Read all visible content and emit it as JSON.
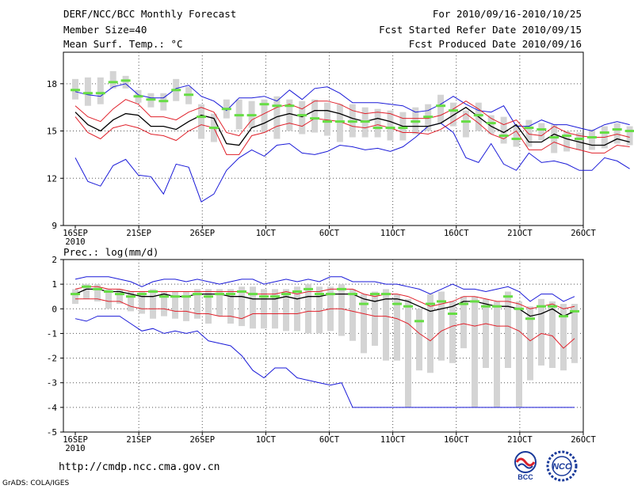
{
  "header": {
    "title": "DERF/NCC/BCC Monthly Forecast",
    "member": "Member Size=40",
    "variable": "Mean Surf. Temp.: °C",
    "period": "For 2010/09/16-2010/10/25",
    "started": "Fcst Started Refer Date 2010/09/15",
    "produced": "Fcst Produced Date 2010/09/16"
  },
  "footer": {
    "url": "http://cmdp.ncc.cma.gov.cn",
    "grads": "GrADS: COLA/IGES",
    "logo_bcc": "BCC",
    "logo_ncc": "NCC"
  },
  "colors": {
    "box": "#d4d4d4",
    "mean": "#000000",
    "spread": "#e0202a",
    "envelope": "#1a1ad8",
    "median": "#66dd44",
    "grid": "#555555"
  },
  "chart_data": [
    {
      "type": "box-plot",
      "title": "Mean Surf. Temp.: °C",
      "xlabel": "",
      "ylabel": "",
      "ylim": [
        9,
        20
      ],
      "yticks": [
        9,
        12,
        15,
        18
      ],
      "xtick_labels": [
        "16SEP",
        "21SEP",
        "26SEP",
        "1OCT",
        "6OCT",
        "11OCT",
        "16OCT",
        "21OCT",
        "26OCT"
      ],
      "xtick_days": [
        0,
        5,
        10,
        15,
        20,
        25,
        30,
        35,
        40
      ],
      "year_label": "2010",
      "series": [
        {
          "name": "mean",
          "values": [
            16.2,
            15.4,
            15.0,
            15.7,
            16.1,
            16.0,
            15.3,
            15.3,
            15.1,
            15.6,
            16.0,
            15.8,
            14.2,
            14.1,
            15.2,
            15.5,
            15.9,
            16.1,
            15.9,
            16.3,
            16.3,
            16.1,
            15.8,
            15.6,
            15.8,
            15.6,
            15.3,
            15.3,
            15.3,
            15.5,
            16.0,
            16.5,
            15.9,
            15.3,
            14.9,
            15.4,
            14.3,
            14.3,
            14.8,
            14.5,
            14.3,
            14.1,
            14.1,
            14.5,
            14.3
          ]
        },
        {
          "name": "mean_plus_sd",
          "values": [
            16.6,
            15.9,
            15.6,
            16.4,
            17.0,
            16.7,
            15.9,
            15.9,
            15.7,
            16.2,
            16.5,
            16.2,
            14.9,
            14.7,
            15.7,
            16.1,
            16.5,
            16.7,
            16.4,
            16.9,
            16.9,
            16.7,
            16.3,
            16.1,
            16.2,
            16.1,
            15.8,
            15.8,
            15.8,
            16.0,
            16.4,
            16.9,
            16.4,
            15.8,
            15.4,
            15.7,
            14.8,
            14.7,
            15.3,
            14.9,
            14.7,
            14.6,
            14.6,
            14.8,
            14.6
          ]
        },
        {
          "name": "mean_minus_sd",
          "values": [
            15.9,
            14.9,
            14.5,
            15.2,
            15.4,
            15.2,
            14.8,
            14.7,
            14.4,
            15.0,
            15.4,
            15.2,
            13.5,
            13.5,
            14.7,
            14.9,
            15.3,
            15.5,
            15.3,
            15.8,
            15.7,
            15.6,
            15.3,
            15.2,
            15.4,
            15.2,
            14.9,
            14.9,
            14.8,
            15.1,
            15.6,
            16.1,
            15.5,
            14.8,
            14.5,
            15.0,
            13.8,
            13.8,
            14.3,
            14.0,
            13.8,
            13.6,
            13.6,
            14.1,
            14.0
          ]
        },
        {
          "name": "ensemble_max",
          "values": [
            17.5,
            17.3,
            17.2,
            17.8,
            18.0,
            17.3,
            17.1,
            17.1,
            17.7,
            17.9,
            17.2,
            16.9,
            16.3,
            17.1,
            17.1,
            17.2,
            16.9,
            17.6,
            17.0,
            17.7,
            17.8,
            17.4,
            16.8,
            16.8,
            16.8,
            16.7,
            16.6,
            16.2,
            16.3,
            16.7,
            17.2,
            16.7,
            16.3,
            16.2,
            16.6,
            15.3,
            15.3,
            15.7,
            15.4,
            15.4,
            15.2,
            15.0,
            15.4,
            15.6,
            15.4
          ]
        },
        {
          "name": "ensemble_min",
          "values": [
            13.3,
            11.8,
            11.5,
            12.8,
            13.2,
            12.2,
            12.1,
            11.0,
            12.9,
            12.7,
            10.5,
            11.0,
            12.5,
            13.3,
            13.8,
            13.4,
            14.1,
            14.2,
            13.6,
            13.5,
            13.7,
            14.1,
            14.0,
            13.8,
            13.9,
            13.7,
            14.0,
            14.6,
            15.3,
            15.5,
            14.9,
            13.3,
            13.0,
            14.2,
            12.9,
            12.5,
            13.6,
            13.0,
            13.1,
            12.9,
            12.5,
            12.5,
            13.3,
            13.1,
            12.6
          ]
        },
        {
          "name": "median",
          "values": [
            17.6,
            17.4,
            17.4,
            18.1,
            18.2,
            17.2,
            17.0,
            16.9,
            17.6,
            17.3,
            15.9,
            15.2,
            16.4,
            16.0,
            16.0,
            16.7,
            16.6,
            16.6,
            16.0,
            15.8,
            15.6,
            15.6,
            15.6,
            15.6,
            15.2,
            15.2,
            15.2,
            15.6,
            15.9,
            16.6,
            16.3,
            15.6,
            16.0,
            15.5,
            14.7,
            14.5,
            15.2,
            15.1,
            14.6,
            14.7,
            14.5,
            14.6,
            14.9,
            15.1,
            15.0
          ]
        },
        {
          "name": "box_top",
          "values": [
            18.3,
            18.4,
            18.4,
            18.8,
            18.5,
            17.6,
            17.4,
            17.4,
            18.3,
            17.8,
            16.7,
            16.1,
            17.0,
            17.0,
            16.9,
            17.0,
            17.2,
            17.0,
            16.9,
            17.0,
            16.8,
            16.7,
            16.7,
            16.5,
            16.4,
            16.3,
            16.2,
            16.5,
            16.7,
            17.3,
            16.8,
            16.3,
            16.8,
            16.0,
            15.9,
            15.4,
            15.7,
            15.5,
            15.4,
            15.0,
            14.9,
            15.1,
            15.3,
            15.5,
            15.3
          ]
        },
        {
          "name": "box_bottom",
          "values": [
            17.0,
            16.6,
            16.7,
            17.7,
            17.7,
            16.8,
            16.5,
            16.3,
            16.9,
            16.7,
            14.5,
            14.3,
            15.8,
            15.1,
            15.2,
            14.9,
            14.5,
            15.0,
            14.8,
            14.9,
            14.7,
            14.3,
            14.6,
            14.6,
            14.6,
            14.4,
            14.4,
            14.8,
            15.0,
            15.5,
            15.3,
            14.6,
            15.0,
            14.8,
            14.2,
            14.0,
            14.0,
            14.4,
            13.6,
            13.7,
            13.8,
            13.8,
            13.9,
            14.2,
            14.1
          ]
        }
      ]
    },
    {
      "type": "box-plot",
      "title": "Prec.: log(mm/d)",
      "xlabel": "",
      "ylabel": "",
      "ylim": [
        -5,
        2
      ],
      "yticks": [
        -5,
        -4,
        -3,
        -2,
        -1,
        0,
        1,
        2
      ],
      "xtick_labels": [
        "16SEP",
        "21SEP",
        "26SEP",
        "1OCT",
        "6OCT",
        "11OCT",
        "16OCT",
        "21OCT",
        "26OCT"
      ],
      "xtick_days": [
        0,
        5,
        10,
        15,
        20,
        25,
        30,
        35,
        40
      ],
      "year_label": "2010",
      "series": [
        {
          "name": "mean",
          "values": [
            0.6,
            0.8,
            0.8,
            0.7,
            0.7,
            0.6,
            0.5,
            0.5,
            0.6,
            0.5,
            0.5,
            0.6,
            0.6,
            0.6,
            0.5,
            0.5,
            0.4,
            0.4,
            0.4,
            0.5,
            0.4,
            0.5,
            0.5,
            0.6,
            0.6,
            0.6,
            0.4,
            0.3,
            0.4,
            0.4,
            0.3,
            0.1,
            -0.1,
            0.0,
            0.1,
            0.3,
            0.3,
            0.2,
            0.1,
            0.1,
            0.0,
            -0.3,
            -0.2,
            0.0,
            -0.3,
            -0.1
          ]
        },
        {
          "name": "mean_plus_sd",
          "values": [
            0.8,
            0.9,
            0.9,
            0.8,
            0.8,
            0.7,
            0.7,
            0.7,
            0.7,
            0.7,
            0.7,
            0.7,
            0.7,
            0.7,
            0.7,
            0.7,
            0.6,
            0.6,
            0.6,
            0.7,
            0.6,
            0.7,
            0.7,
            0.8,
            0.8,
            0.8,
            0.6,
            0.5,
            0.6,
            0.6,
            0.5,
            0.3,
            0.1,
            0.2,
            0.3,
            0.5,
            0.5,
            0.4,
            0.3,
            0.3,
            0.2,
            0.0,
            0.1,
            0.2,
            0.0,
            0.1
          ]
        },
        {
          "name": "mean_minus_sd",
          "values": [
            0.4,
            0.4,
            0.4,
            0.3,
            0.3,
            0.1,
            0.0,
            0.0,
            0.0,
            -0.1,
            -0.1,
            -0.2,
            -0.2,
            -0.3,
            -0.3,
            -0.4,
            -0.2,
            -0.2,
            -0.2,
            -0.2,
            -0.2,
            -0.1,
            -0.1,
            0.0,
            0.0,
            -0.1,
            -0.2,
            -0.3,
            -0.3,
            -0.4,
            -0.6,
            -1.0,
            -1.3,
            -0.9,
            -0.7,
            -0.6,
            -0.7,
            -0.6,
            -0.7,
            -0.7,
            -0.9,
            -1.3,
            -1.0,
            -1.1,
            -1.6,
            -1.2
          ]
        },
        {
          "name": "ensemble_max",
          "values": [
            1.2,
            1.3,
            1.3,
            1.3,
            1.2,
            1.1,
            0.9,
            1.1,
            1.2,
            1.2,
            1.1,
            1.2,
            1.1,
            1.0,
            1.1,
            1.2,
            1.2,
            1.0,
            1.1,
            1.2,
            1.1,
            1.2,
            1.1,
            1.3,
            1.3,
            1.1,
            1.1,
            1.1,
            1.0,
            1.0,
            0.9,
            0.8,
            0.6,
            0.8,
            1.0,
            0.8,
            0.8,
            0.7,
            0.8,
            0.9,
            0.7,
            0.3,
            0.6,
            0.6,
            0.3,
            0.5
          ]
        },
        {
          "name": "ensemble_min",
          "values": [
            -0.4,
            -0.5,
            -0.3,
            -0.3,
            -0.3,
            -0.6,
            -0.9,
            -0.8,
            -1.0,
            -0.9,
            -1.0,
            -0.9,
            -1.3,
            -1.4,
            -1.5,
            -1.9,
            -2.5,
            -2.8,
            -2.4,
            -2.4,
            -2.8,
            -2.9,
            -3.0,
            -3.1,
            -3.0,
            -4.0,
            -4.0,
            -4.0,
            -4.0,
            -4.0,
            -4.0,
            -4.0,
            -4.0,
            -4.0,
            -4.0,
            -4.0,
            -4.0,
            -4.0,
            -4.0,
            -4.0,
            -4.0,
            -4.0,
            -4.0,
            -4.0,
            -4.0,
            -4.0
          ]
        },
        {
          "name": "median",
          "values": [
            0.6,
            0.9,
            0.8,
            0.7,
            0.6,
            0.5,
            0.6,
            0.7,
            0.5,
            0.5,
            0.5,
            0.6,
            0.5,
            0.6,
            0.6,
            0.7,
            0.6,
            0.5,
            0.5,
            0.6,
            0.7,
            0.8,
            0.6,
            0.6,
            0.8,
            0.6,
            0.2,
            0.6,
            0.6,
            0.2,
            0.1,
            -0.5,
            0.2,
            0.3,
            -0.2,
            0.2,
            0.3,
            0.1,
            0.1,
            0.5,
            0.0,
            -0.4,
            0.1,
            0.1,
            -0.3,
            -0.1
          ]
        },
        {
          "name": "box_top",
          "values": [
            0.8,
            1.0,
            1.0,
            0.8,
            0.8,
            0.7,
            0.7,
            0.8,
            0.7,
            0.7,
            0.7,
            0.8,
            0.8,
            0.8,
            0.8,
            0.9,
            0.9,
            0.8,
            0.8,
            0.8,
            0.9,
            1.0,
            0.9,
            0.9,
            1.0,
            0.8,
            0.6,
            0.7,
            0.8,
            0.6,
            0.4,
            0.0,
            0.6,
            0.7,
            0.3,
            0.5,
            0.5,
            0.4,
            0.3,
            0.7,
            0.3,
            0.1,
            0.4,
            0.3,
            0.2,
            0.2
          ]
        },
        {
          "name": "box_bottom",
          "values": [
            0.2,
            0.4,
            0.3,
            0.0,
            0.2,
            -0.1,
            -0.2,
            -0.4,
            -0.3,
            -0.4,
            -0.5,
            -0.4,
            -0.6,
            -0.3,
            -0.6,
            -0.7,
            -0.8,
            -0.8,
            -0.8,
            -0.9,
            -0.9,
            -1.0,
            -1.0,
            -0.9,
            -1.1,
            -1.3,
            -1.8,
            -1.5,
            -2.1,
            -2.1,
            -4.0,
            -2.5,
            -2.6,
            -2.1,
            -2.2,
            -1.6,
            -4.0,
            -2.4,
            -4.0,
            -2.4,
            -4.0,
            -2.9,
            -2.3,
            -2.4,
            -2.5,
            -2.2
          ]
        }
      ]
    }
  ]
}
